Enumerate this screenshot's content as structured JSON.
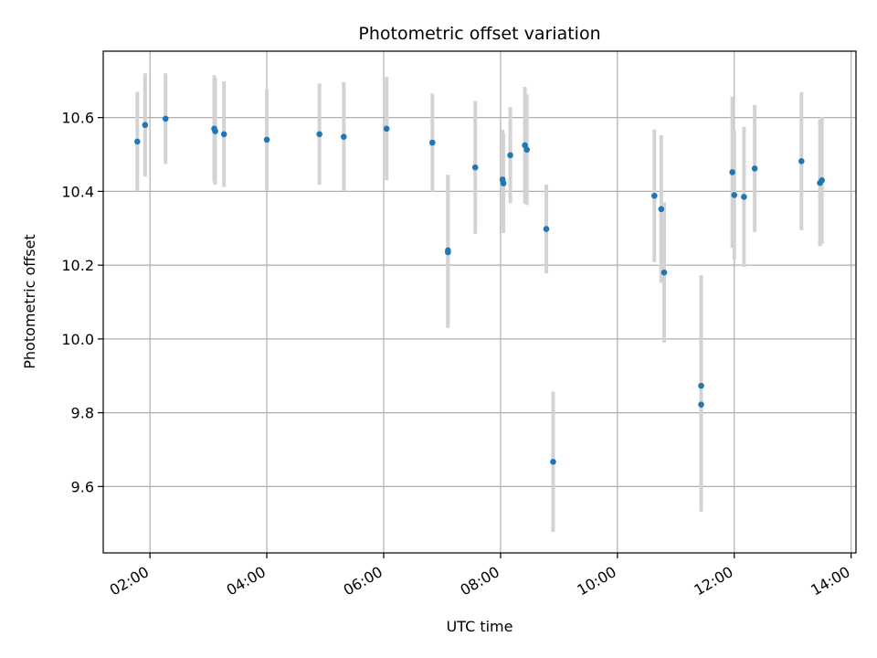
{
  "chart_data": {
    "type": "scatter",
    "title": "Photometric offset variation",
    "xlabel": "UTC time",
    "ylabel": "Photometric offset",
    "x_axis": "time",
    "x_ticks": [
      "02:00",
      "04:00",
      "06:00",
      "08:00",
      "10:00",
      "12:00",
      "14:00"
    ],
    "y_ticks": [
      "9.6",
      "9.8",
      "10.0",
      "10.2",
      "10.4",
      "10.6"
    ],
    "xlim": [
      "01:12",
      "14:05"
    ],
    "ylim": [
      9.42,
      10.78
    ],
    "grid": true,
    "colors": {
      "point": "#1f77b4",
      "errorbar": "#d3d3d3",
      "grid": "#b0b0b0"
    },
    "series": [
      {
        "points": [
          {
            "t": "01:47",
            "y": 10.535,
            "err": 0.135
          },
          {
            "t": "01:55",
            "y": 10.58,
            "err": 0.14
          },
          {
            "t": "02:16",
            "y": 10.597,
            "err": 0.123
          },
          {
            "t": "03:06",
            "y": 10.57,
            "err": 0.145
          },
          {
            "t": "03:07",
            "y": 10.563,
            "err": 0.145
          },
          {
            "t": "03:16",
            "y": 10.555,
            "err": 0.143
          },
          {
            "t": "04:00",
            "y": 10.54,
            "err": 0.137
          },
          {
            "t": "04:54",
            "y": 10.555,
            "err": 0.137
          },
          {
            "t": "05:19",
            "y": 10.548,
            "err": 0.148
          },
          {
            "t": "06:03",
            "y": 10.57,
            "err": 0.14
          },
          {
            "t": "06:50",
            "y": 10.532,
            "err": 0.133
          },
          {
            "t": "07:06",
            "y": 10.24,
            "err": 0.205
          },
          {
            "t": "07:06",
            "y": 10.235,
            "err": 0.205
          },
          {
            "t": "07:34",
            "y": 10.465,
            "err": 0.18
          },
          {
            "t": "08:02",
            "y": 10.432,
            "err": 0.135
          },
          {
            "t": "08:03",
            "y": 10.422,
            "err": 0.135
          },
          {
            "t": "08:10",
            "y": 10.498,
            "err": 0.13
          },
          {
            "t": "08:25",
            "y": 10.525,
            "err": 0.158
          },
          {
            "t": "08:27",
            "y": 10.513,
            "err": 0.15
          },
          {
            "t": "08:47",
            "y": 10.298,
            "err": 0.12
          },
          {
            "t": "08:54",
            "y": 9.667,
            "err": 0.19
          },
          {
            "t": "10:38",
            "y": 10.388,
            "err": 0.18
          },
          {
            "t": "10:45",
            "y": 10.352,
            "err": 0.2
          },
          {
            "t": "10:48",
            "y": 10.18,
            "err": 0.19
          },
          {
            "t": "11:26",
            "y": 9.873,
            "err": 0.3
          },
          {
            "t": "11:26",
            "y": 9.822,
            "err": 0.29
          },
          {
            "t": "11:58",
            "y": 10.452,
            "err": 0.205
          },
          {
            "t": "12:00",
            "y": 10.39,
            "err": 0.175
          },
          {
            "t": "12:10",
            "y": 10.385,
            "err": 0.19
          },
          {
            "t": "12:21",
            "y": 10.462,
            "err": 0.172
          },
          {
            "t": "13:09",
            "y": 10.482,
            "err": 0.187
          },
          {
            "t": "13:28",
            "y": 10.423,
            "err": 0.172
          },
          {
            "t": "13:30",
            "y": 10.43,
            "err": 0.172
          }
        ]
      }
    ]
  }
}
